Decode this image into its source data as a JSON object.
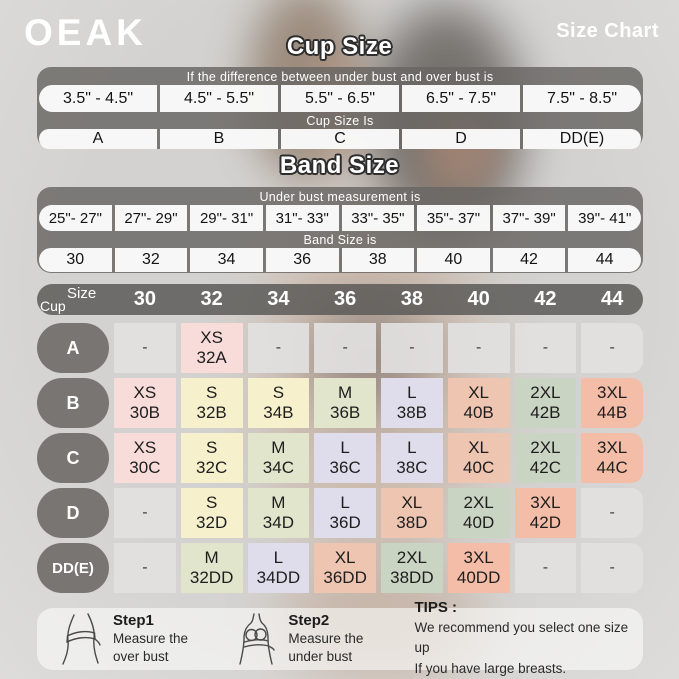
{
  "brand": "OEAK",
  "page_title": "Size Chart",
  "cup_size_section": {
    "title": "Cup Size",
    "condition_label": "If the difference between under bust and over bust is",
    "ranges": [
      "3.5\" - 4.5\"",
      "4.5\" - 5.5\"",
      "5.5\" - 6.5\"",
      "6.5\" - 7.5\"",
      "7.5\" - 8.5\""
    ],
    "result_label": "Cup Size Is",
    "cups": [
      "A",
      "B",
      "C",
      "D",
      "DD(E)"
    ]
  },
  "band_size_section": {
    "title": "Band Size",
    "condition_label": "Under bust measurement is",
    "ranges": [
      "25\"- 27\"",
      "27\"- 29\"",
      "29\"- 31\"",
      "31\"- 33\"",
      "33\"- 35\"",
      "35\"- 37\"",
      "37\"- 39\"",
      "39\"- 41\""
    ],
    "result_label": "Band Size is",
    "bands": [
      "30",
      "32",
      "34",
      "36",
      "38",
      "40",
      "42",
      "44"
    ]
  },
  "matrix": {
    "corner": {
      "top": "Size",
      "bottom": "Cup"
    },
    "columns": [
      "30",
      "32",
      "34",
      "36",
      "38",
      "40",
      "42",
      "44"
    ],
    "rows": [
      {
        "cup": "A",
        "cells": [
          {
            "size": "-",
            "code": ""
          },
          {
            "size": "XS",
            "code": "32A"
          },
          {
            "size": "-",
            "code": ""
          },
          {
            "size": "-",
            "code": ""
          },
          {
            "size": "-",
            "code": ""
          },
          {
            "size": "-",
            "code": ""
          },
          {
            "size": "-",
            "code": ""
          },
          {
            "size": "-",
            "code": ""
          }
        ]
      },
      {
        "cup": "B",
        "cells": [
          {
            "size": "XS",
            "code": "30B"
          },
          {
            "size": "S",
            "code": "32B"
          },
          {
            "size": "S",
            "code": "34B"
          },
          {
            "size": "M",
            "code": "36B"
          },
          {
            "size": "L",
            "code": "38B"
          },
          {
            "size": "XL",
            "code": "40B"
          },
          {
            "size": "2XL",
            "code": "42B"
          },
          {
            "size": "3XL",
            "code": "44B"
          }
        ]
      },
      {
        "cup": "C",
        "cells": [
          {
            "size": "XS",
            "code": "30C"
          },
          {
            "size": "S",
            "code": "32C"
          },
          {
            "size": "M",
            "code": "34C"
          },
          {
            "size": "L",
            "code": "36C"
          },
          {
            "size": "L",
            "code": "38C"
          },
          {
            "size": "XL",
            "code": "40C"
          },
          {
            "size": "2XL",
            "code": "42C"
          },
          {
            "size": "3XL",
            "code": "44C"
          }
        ]
      },
      {
        "cup": "D",
        "cells": [
          {
            "size": "-",
            "code": ""
          },
          {
            "size": "S",
            "code": "32D"
          },
          {
            "size": "M",
            "code": "34D"
          },
          {
            "size": "L",
            "code": "36D"
          },
          {
            "size": "XL",
            "code": "38D"
          },
          {
            "size": "2XL",
            "code": "40D"
          },
          {
            "size": "3XL",
            "code": "42D"
          },
          {
            "size": "-",
            "code": ""
          }
        ]
      },
      {
        "cup": "DD(E)",
        "cells": [
          {
            "size": "-",
            "code": ""
          },
          {
            "size": "M",
            "code": "32DD"
          },
          {
            "size": "L",
            "code": "34DD"
          },
          {
            "size": "XL",
            "code": "36DD"
          },
          {
            "size": "2XL",
            "code": "38DD"
          },
          {
            "size": "3XL",
            "code": "40DD"
          },
          {
            "size": "-",
            "code": ""
          },
          {
            "size": "-",
            "code": ""
          }
        ]
      }
    ]
  },
  "cell_colors": {
    "-": "rgba(226,225,224,0.92)",
    "XS": "#f8dcda",
    "S": "#f6f0cd",
    "M": "#e0e5cb",
    "L": "#dfddec",
    "XL": "#edc5b1",
    "2XL": "#c9d4c3",
    "3XL": "#f4bda7"
  },
  "footer": {
    "step1": {
      "title": "Step1",
      "desc": "Measure the\nover bust",
      "icon": "measure-over-bust-icon"
    },
    "step2": {
      "title": "Step2",
      "desc": "Measure the\nunder bust",
      "icon": "measure-under-bust-icon"
    },
    "tips": {
      "title": "TIPS :",
      "body": "We recommend you select one size up\nIf you have large breasts."
    }
  },
  "theme": {
    "page_bg": "#d7d6d4",
    "table_bg": "rgba(104,101,99,0.82)",
    "header_bar_bg": "rgba(92,90,88,0.85)",
    "pill_bg": "#ffffff",
    "text_on_gray": "#ffffff",
    "cell_text": "#1e1e1e"
  }
}
